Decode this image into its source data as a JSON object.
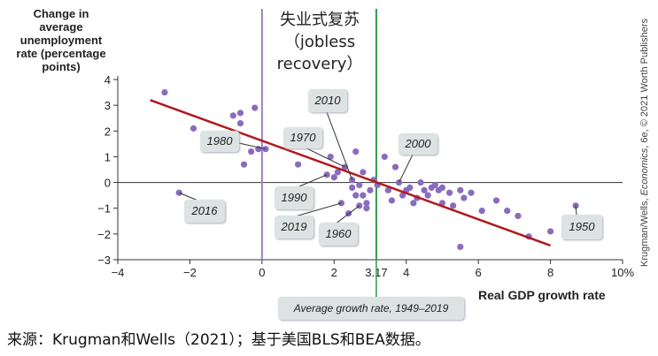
{
  "chart_data": {
    "type": "scatter",
    "xlabel": "Real GDP growth rate",
    "ylabel_lines": [
      "Change in",
      "average",
      "unemployment",
      "rate (percentage",
      "points)"
    ],
    "xlim": [
      -4,
      10
    ],
    "ylim": [
      -3,
      4
    ],
    "x_ticks": [
      "−4",
      "−2",
      "0",
      "2",
      "3.17",
      "4",
      "6",
      "8",
      "10%"
    ],
    "y_ticks": [
      "4",
      "3",
      "2",
      "1",
      "0",
      "−1",
      "−2",
      "−3"
    ],
    "grid": false,
    "points": [
      {
        "x": -2.7,
        "y": 3.5
      },
      {
        "x": -2.3,
        "y": -0.4
      },
      {
        "x": -1.9,
        "y": 2.1
      },
      {
        "x": -0.8,
        "y": 2.6
      },
      {
        "x": -0.6,
        "y": 2.7
      },
      {
        "x": -0.6,
        "y": 2.3
      },
      {
        "x": -0.2,
        "y": 2.9
      },
      {
        "x": -0.5,
        "y": 0.7
      },
      {
        "x": -0.3,
        "y": 1.2
      },
      {
        "x": -0.1,
        "y": 1.3
      },
      {
        "x": 0.1,
        "y": 1.3
      },
      {
        "x": 1.0,
        "y": 0.7
      },
      {
        "x": 1.8,
        "y": 0.3
      },
      {
        "x": 1.9,
        "y": 1.0
      },
      {
        "x": 2.0,
        "y": 0.2
      },
      {
        "x": 2.1,
        "y": 0.4
      },
      {
        "x": 2.3,
        "y": 0.6
      },
      {
        "x": 2.2,
        "y": -0.8
      },
      {
        "x": 2.4,
        "y": -1.2
      },
      {
        "x": 2.5,
        "y": -0.2
      },
      {
        "x": 2.5,
        "y": 0.1
      },
      {
        "x": 2.6,
        "y": 1.2
      },
      {
        "x": 2.6,
        "y": -0.5
      },
      {
        "x": 2.7,
        "y": -0.1
      },
      {
        "x": 2.7,
        "y": -0.9
      },
      {
        "x": 2.8,
        "y": 0.4
      },
      {
        "x": 2.8,
        "y": -0.5
      },
      {
        "x": 2.9,
        "y": -0.8
      },
      {
        "x": 2.9,
        "y": -1.0
      },
      {
        "x": 3.0,
        "y": -0.3
      },
      {
        "x": 3.1,
        "y": 0.1
      },
      {
        "x": 3.2,
        "y": -0.1
      },
      {
        "x": 3.4,
        "y": 1.0
      },
      {
        "x": 3.5,
        "y": -0.3
      },
      {
        "x": 3.6,
        "y": -0.7
      },
      {
        "x": 3.7,
        "y": 0.6
      },
      {
        "x": 3.8,
        "y": 0.0
      },
      {
        "x": 3.9,
        "y": -0.5
      },
      {
        "x": 4.0,
        "y": -0.3
      },
      {
        "x": 4.1,
        "y": -0.2
      },
      {
        "x": 4.2,
        "y": -0.8
      },
      {
        "x": 4.3,
        "y": -0.6
      },
      {
        "x": 4.4,
        "y": 0.0
      },
      {
        "x": 4.5,
        "y": -0.3
      },
      {
        "x": 4.6,
        "y": -0.5
      },
      {
        "x": 4.7,
        "y": -0.2
      },
      {
        "x": 4.8,
        "y": -0.1
      },
      {
        "x": 4.9,
        "y": -0.3
      },
      {
        "x": 5.0,
        "y": -0.2
      },
      {
        "x": 5.0,
        "y": -0.8
      },
      {
        "x": 5.2,
        "y": -0.4
      },
      {
        "x": 5.3,
        "y": -0.9
      },
      {
        "x": 5.5,
        "y": -0.3
      },
      {
        "x": 5.5,
        "y": -2.5
      },
      {
        "x": 5.6,
        "y": -0.6
      },
      {
        "x": 5.8,
        "y": -0.4
      },
      {
        "x": 6.1,
        "y": -1.1
      },
      {
        "x": 6.5,
        "y": -0.7
      },
      {
        "x": 6.8,
        "y": -1.1
      },
      {
        "x": 7.1,
        "y": -1.3
      },
      {
        "x": 7.4,
        "y": -2.1
      },
      {
        "x": 8.0,
        "y": -1.9
      },
      {
        "x": 8.7,
        "y": -0.9
      }
    ],
    "trend_line": {
      "x": [
        -3.1,
        8.0
      ],
      "y": [
        3.2,
        -2.45
      ],
      "color": "#b0181c"
    },
    "reference_lines": [
      {
        "x": 0,
        "color": "#9a7fc4"
      },
      {
        "x": 3.17,
        "color": "#2e9a4a"
      }
    ],
    "point_color": "#8a6bbd",
    "year_labels": [
      "2010",
      "1970",
      "1980",
      "2000",
      "1990",
      "2016",
      "2019",
      "1960",
      "1950"
    ],
    "annotations": {
      "jobless_recovery": [
        "失业式复苏",
        "（jobless",
        "recovery）"
      ],
      "average_growth": "Average growth rate, 1949–2019"
    }
  },
  "credit": {
    "prefix": "Krugman/Wells, ",
    "italic": "Economics",
    "suffix": ", 6e, © 2021 Worth Publishers"
  },
  "source": "来源：Krugman和Wells（2021）；基于美国BLS和BEA数据。"
}
